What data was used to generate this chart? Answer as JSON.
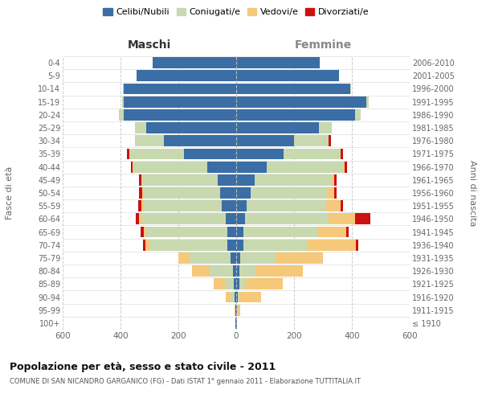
{
  "age_groups": [
    "100+",
    "95-99",
    "90-94",
    "85-89",
    "80-84",
    "75-79",
    "70-74",
    "65-69",
    "60-64",
    "55-59",
    "50-54",
    "45-49",
    "40-44",
    "35-39",
    "30-34",
    "25-29",
    "20-24",
    "15-19",
    "10-14",
    "5-9",
    "0-4"
  ],
  "birth_years": [
    "≤ 1910",
    "1911-1915",
    "1916-1920",
    "1921-1925",
    "1926-1930",
    "1931-1935",
    "1936-1940",
    "1941-1945",
    "1946-1950",
    "1951-1955",
    "1956-1960",
    "1961-1965",
    "1966-1970",
    "1971-1975",
    "1976-1980",
    "1981-1985",
    "1986-1990",
    "1991-1995",
    "1996-2000",
    "2001-2005",
    "2006-2010"
  ],
  "male_celibi": [
    2,
    2,
    5,
    8,
    12,
    20,
    30,
    30,
    35,
    50,
    55,
    65,
    100,
    180,
    250,
    310,
    390,
    390,
    390,
    345,
    290
  ],
  "male_coniugati": [
    0,
    2,
    15,
    30,
    80,
    140,
    270,
    280,
    290,
    270,
    265,
    260,
    255,
    190,
    100,
    40,
    15,
    5,
    2,
    0,
    0
  ],
  "male_vedovi": [
    0,
    2,
    15,
    40,
    60,
    40,
    15,
    10,
    10,
    8,
    5,
    3,
    2,
    0,
    0,
    0,
    0,
    0,
    0,
    0,
    0
  ],
  "male_divorziati": [
    0,
    0,
    0,
    0,
    0,
    0,
    8,
    10,
    12,
    12,
    10,
    8,
    8,
    8,
    0,
    0,
    0,
    0,
    0,
    0,
    0
  ],
  "female_celibi": [
    2,
    3,
    5,
    10,
    10,
    15,
    25,
    25,
    30,
    35,
    50,
    65,
    105,
    165,
    200,
    285,
    410,
    450,
    395,
    355,
    290
  ],
  "female_coniugati": [
    0,
    2,
    10,
    20,
    60,
    120,
    220,
    255,
    290,
    275,
    265,
    265,
    265,
    195,
    120,
    45,
    20,
    8,
    2,
    0,
    0
  ],
  "female_vedovi": [
    2,
    10,
    70,
    130,
    160,
    165,
    170,
    100,
    90,
    50,
    25,
    10,
    5,
    2,
    0,
    0,
    0,
    0,
    0,
    0,
    0
  ],
  "female_divorziati": [
    0,
    0,
    0,
    0,
    0,
    0,
    8,
    8,
    55,
    10,
    8,
    8,
    8,
    8,
    8,
    0,
    0,
    0,
    0,
    0,
    0
  ],
  "colors": {
    "celibi": "#3a6ea5",
    "coniugati": "#c8d9b0",
    "vedovi": "#f5c87a",
    "divorziati": "#cc1111"
  },
  "title": "Popolazione per età, sesso e stato civile - 2011",
  "subtitle": "COMUNE DI SAN NICANDRO GARGANICO (FG) - Dati ISTAT 1° gennaio 2011 - Elaborazione TUTTITALIA.IT",
  "xlabel_left": "Maschi",
  "xlabel_right": "Femmine",
  "ylabel_left": "Fasce di età",
  "ylabel_right": "Anni di nascita",
  "xlim": 600,
  "background_color": "#ffffff",
  "legend_labels": [
    "Celibi/Nubili",
    "Coniugati/e",
    "Vedovi/e",
    "Divorziati/e"
  ]
}
